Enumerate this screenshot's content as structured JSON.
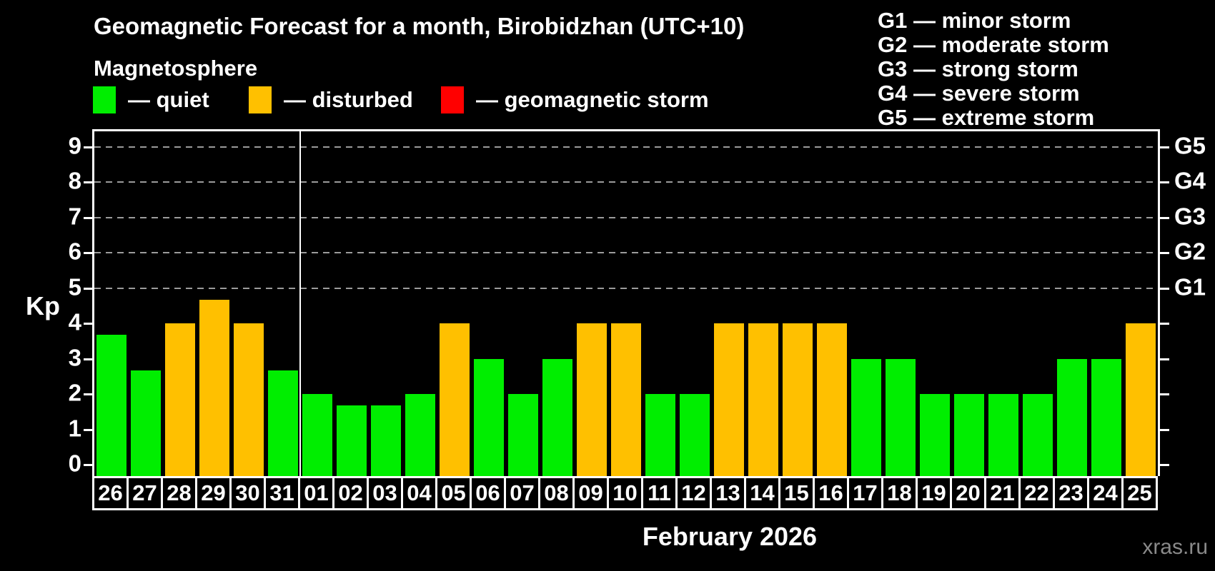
{
  "title": "Geomagnetic Forecast for a month, Birobidzhan (UTC+10)",
  "subtitle": "Magnetosphere",
  "legend": {
    "items": [
      {
        "label": "— quiet",
        "status": "quiet"
      },
      {
        "label": "— disturbed",
        "status": "disturbed"
      },
      {
        "label": "— geomagnetic storm",
        "status": "storm"
      }
    ]
  },
  "g_legend": {
    "items": [
      "G1 — minor storm",
      "G2 — moderate storm",
      "G3 — strong storm",
      "G4 — severe storm",
      "G5 — extreme storm"
    ]
  },
  "watermark": "xras.ru",
  "chart_data": {
    "type": "bar",
    "title": "Geomagnetic Forecast for a month, Birobidzhan (UTC+10)",
    "ylabel": "Kp",
    "xlabel": "February 2026",
    "categories": [
      "26",
      "27",
      "28",
      "29",
      "30",
      "31",
      "01",
      "02",
      "03",
      "04",
      "05",
      "06",
      "07",
      "08",
      "09",
      "10",
      "11",
      "12",
      "13",
      "14",
      "15",
      "16",
      "17",
      "18",
      "19",
      "20",
      "21",
      "22",
      "23",
      "24",
      "25"
    ],
    "values": [
      3.67,
      2.67,
      4,
      4.67,
      4,
      2.67,
      2,
      1.67,
      1.67,
      2,
      4,
      3,
      2,
      3,
      4,
      4,
      2,
      2,
      4,
      4,
      4,
      4,
      3,
      3,
      2,
      2,
      2,
      2,
      3,
      3,
      4
    ],
    "statuses": [
      "quiet",
      "quiet",
      "disturbed",
      "disturbed",
      "disturbed",
      "quiet",
      "quiet",
      "quiet",
      "quiet",
      "quiet",
      "disturbed",
      "quiet",
      "quiet",
      "quiet",
      "disturbed",
      "disturbed",
      "quiet",
      "quiet",
      "disturbed",
      "disturbed",
      "disturbed",
      "disturbed",
      "quiet",
      "quiet",
      "quiet",
      "quiet",
      "quiet",
      "quiet",
      "quiet",
      "quiet",
      "disturbed"
    ],
    "colors": {
      "quiet": "#00EE00",
      "disturbed": "#FFC000",
      "storm": "#FF0000"
    },
    "ylim": [
      0,
      9.4
    ],
    "y_ticks": [
      0,
      1,
      2,
      3,
      4,
      5,
      6,
      7,
      8,
      9
    ],
    "grid_kp": [
      5,
      6,
      7,
      8,
      9
    ],
    "right_axis_labels": [
      {
        "kp": 5,
        "label": "G1"
      },
      {
        "kp": 6,
        "label": "G2"
      },
      {
        "kp": 7,
        "label": "G3"
      },
      {
        "kp": 8,
        "label": "G4"
      },
      {
        "kp": 9,
        "label": "G5"
      }
    ],
    "month_separator_after_index": 5,
    "grid": true,
    "legend_position": "top"
  }
}
